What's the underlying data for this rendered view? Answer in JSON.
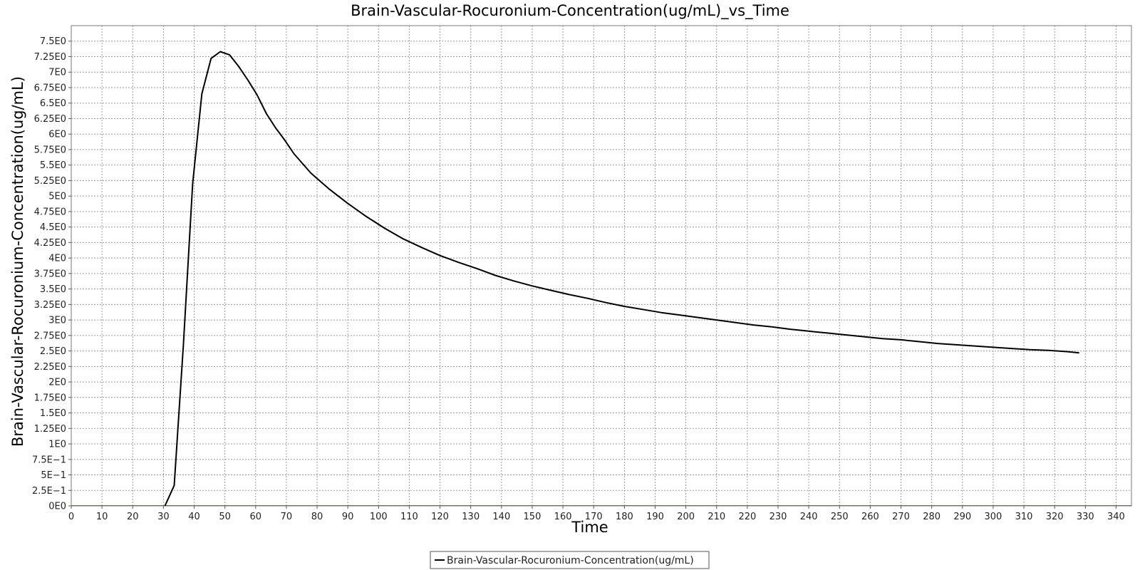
{
  "chart_data": {
    "type": "line",
    "title": "Brain-Vascular-Rocuronium-Concentration(ug/mL)_vs_Time",
    "xlabel": "Time",
    "ylabel": "Brain-Vascular-Rocuronium-Concentration(ug/mL)",
    "xlim": [
      0,
      345
    ],
    "ylim": [
      0,
      7.75
    ],
    "x_ticks": [
      0,
      10,
      20,
      30,
      40,
      50,
      60,
      70,
      80,
      90,
      100,
      110,
      120,
      130,
      140,
      150,
      160,
      170,
      180,
      190,
      200,
      210,
      220,
      230,
      240,
      250,
      260,
      270,
      280,
      290,
      300,
      310,
      320,
      330,
      340
    ],
    "y_ticks": [
      0,
      0.25,
      0.5,
      0.75,
      1,
      1.25,
      1.5,
      1.75,
      2,
      2.25,
      2.5,
      2.75,
      3,
      3.25,
      3.5,
      3.75,
      4,
      4.25,
      4.5,
      4.75,
      5,
      5.25,
      5.5,
      5.75,
      6,
      6.25,
      6.5,
      6.75,
      7,
      7.25,
      7.5
    ],
    "y_tick_labels": [
      "0E0",
      "2.5E−1",
      "5E−1",
      "7.5E−1",
      "1E0",
      "1.25E0",
      "1.5E0",
      "1.75E0",
      "2E0",
      "2.25E0",
      "2.5E0",
      "2.75E0",
      "3E0",
      "3.25E0",
      "3.5E0",
      "3.75E0",
      "4E0",
      "4.25E0",
      "4.5E0",
      "4.75E0",
      "5E0",
      "5.25E0",
      "5.5E0",
      "5.75E0",
      "6E0",
      "6.25E0",
      "6.5E0",
      "6.75E0",
      "7E0",
      "7.25E0",
      "7.5E0"
    ],
    "grid": true,
    "legend_position": "bottom-center",
    "series": [
      {
        "name": "Brain-Vascular-Rocuronium-Concentration(ug/mL)",
        "color": "#000000",
        "x": [
          30.5,
          33.5,
          36.5,
          39.5,
          42.5,
          45.5,
          48.5,
          51.5,
          54.5,
          57.5,
          60.5,
          63.5,
          66.5,
          69.5,
          72.5,
          78,
          84,
          90,
          96,
          102,
          108,
          114,
          120,
          126,
          132,
          138,
          144,
          150,
          156,
          162,
          168,
          174,
          180,
          186,
          192,
          198,
          204,
          210,
          216,
          222,
          228,
          234,
          240,
          246,
          252,
          258,
          264,
          270,
          276,
          282,
          288,
          294,
          300,
          306,
          312,
          318,
          324,
          328
        ],
        "y": [
          0.0,
          0.33,
          2.6,
          5.2,
          6.65,
          7.22,
          7.33,
          7.28,
          7.09,
          6.87,
          6.63,
          6.33,
          6.1,
          5.9,
          5.68,
          5.37,
          5.11,
          4.88,
          4.67,
          4.48,
          4.31,
          4.17,
          4.04,
          3.93,
          3.83,
          3.72,
          3.63,
          3.55,
          3.48,
          3.41,
          3.35,
          3.28,
          3.22,
          3.17,
          3.12,
          3.08,
          3.04,
          3.0,
          2.96,
          2.92,
          2.89,
          2.85,
          2.82,
          2.79,
          2.76,
          2.73,
          2.7,
          2.68,
          2.65,
          2.62,
          2.6,
          2.58,
          2.56,
          2.54,
          2.52,
          2.51,
          2.49,
          2.47
        ]
      }
    ]
  }
}
